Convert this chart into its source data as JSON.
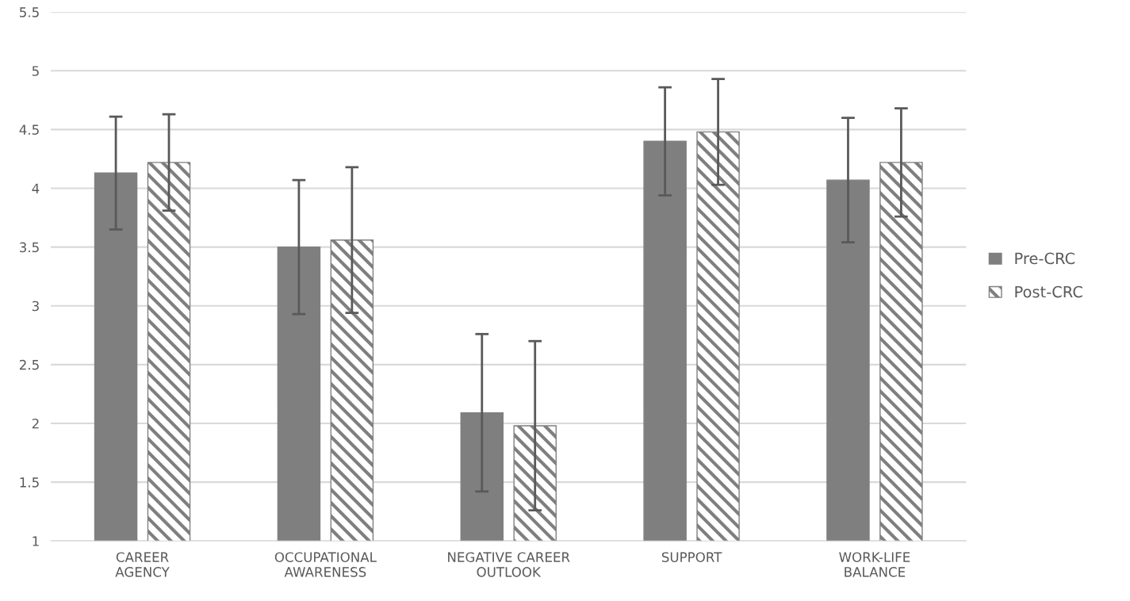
{
  "chart_data": {
    "type": "bar",
    "categories": [
      "CAREER\nAGENCY",
      "OCCUPATIONAL\nAWARENESS",
      "NEGATIVE CAREER\nOUTLOOK",
      "SUPPORT",
      "WORK-LIFE\nBALANCE"
    ],
    "series": [
      {
        "name": "Pre-CRC",
        "color": "#7f7f7f",
        "values": [
          4.13,
          3.5,
          2.09,
          4.4,
          4.07
        ],
        "errors": [
          0.48,
          0.57,
          0.67,
          0.46,
          0.53
        ]
      },
      {
        "name": "Post-CRC",
        "color": "#7f7f7f",
        "values": [
          4.22,
          3.56,
          1.98,
          4.48,
          4.22
        ],
        "errors": [
          0.41,
          0.62,
          0.72,
          0.45,
          0.46
        ]
      }
    ],
    "ylim": [
      1,
      5.5
    ],
    "yticks": [
      1,
      1.5,
      2,
      2.5,
      3,
      3.5,
      4,
      4.5,
      5,
      5.5
    ],
    "grid": "y",
    "legend": "right"
  }
}
